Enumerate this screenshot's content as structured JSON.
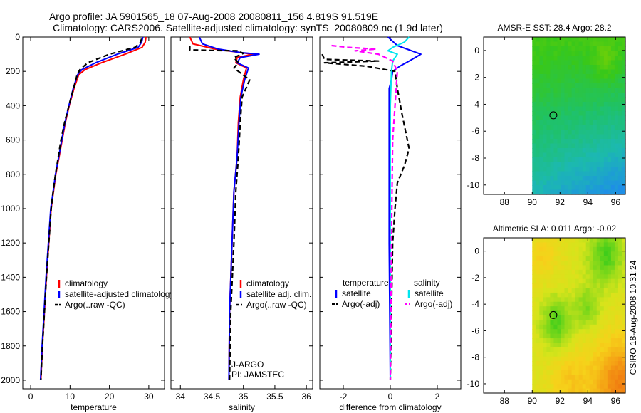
{
  "header": {
    "line1": "Argo profile: JA 5901565_18 07-Aug-2008 20080811_156 4.819S 91.519E",
    "line2": "Climatology: CARS2006. Satellite-adjusted climatology: synTS_20080809.nc (1.9d later)"
  },
  "side_stamp": "CSIRO 18-Aug-2008 10:31:24",
  "colors": {
    "climatology": "#ff0000",
    "satellite": "#0000ff",
    "argo": "#000000",
    "salinity_satellite": "#00e5ee",
    "salinity_argo": "#ff00ff",
    "float_marker": "#000000"
  },
  "chart_data": [
    {
      "type": "line",
      "name": "temperature-profile",
      "xlabel": "temperature",
      "ylabel": "",
      "xlim": [
        -2,
        34
      ],
      "ylim": [
        0,
        2050
      ],
      "y_reversed": true,
      "xticks": [
        0,
        10,
        20,
        30
      ],
      "xtick_labels": [
        "0",
        "10",
        "20",
        "30"
      ],
      "yticks": [
        0,
        200,
        400,
        600,
        800,
        1000,
        1200,
        1400,
        1600,
        1800,
        2000
      ],
      "ytick_labels": [
        "0",
        "200",
        "400",
        "600",
        "800",
        "1000",
        "1200",
        "1400",
        "1600",
        "1800",
        "2000"
      ],
      "legend": [
        "climatology",
        "satellite-adjusted climatology",
        "Argo(..raw -QC)"
      ],
      "legend_position": "lower-center",
      "series": [
        {
          "name": "climatology",
          "style": "solid",
          "color": "#ff0000",
          "x": [
            29.3,
            29.1,
            28.3,
            24.0,
            18.0,
            13.8,
            12.2,
            11.0,
            9.8,
            8.8,
            8.0,
            7.2,
            6.4,
            5.8,
            5.2,
            4.6,
            4.0,
            3.5,
            3.0,
            2.6
          ],
          "y": [
            0,
            30,
            60,
            100,
            150,
            190,
            220,
            300,
            400,
            500,
            600,
            700,
            800,
            900,
            1000,
            1200,
            1400,
            1600,
            1800,
            2000
          ]
        },
        {
          "name": "satellite-adjusted climatology",
          "style": "solid",
          "color": "#0000ff",
          "x": [
            28.5,
            28.2,
            27.3,
            22.0,
            16.5,
            13.0,
            11.9,
            10.8,
            9.7,
            8.7,
            7.9,
            7.1,
            6.3,
            5.7,
            5.1,
            4.5,
            3.9,
            3.4,
            2.9,
            2.5
          ],
          "y": [
            0,
            30,
            60,
            100,
            150,
            190,
            220,
            300,
            400,
            500,
            600,
            700,
            800,
            900,
            1000,
            1200,
            1400,
            1600,
            1800,
            2000
          ]
        },
        {
          "name": "Argo(..raw -QC)",
          "style": "dashed",
          "color": "#000000",
          "x": [
            28.2,
            27.8,
            26.5,
            20.0,
            14.5,
            12.5,
            11.8,
            10.9,
            9.7,
            8.6,
            7.7,
            7.0,
            6.3,
            5.7,
            5.2,
            4.6,
            4.0,
            3.5,
            3.0,
            2.6
          ],
          "y": [
            10,
            35,
            60,
            100,
            150,
            190,
            220,
            300,
            400,
            500,
            600,
            700,
            800,
            900,
            1000,
            1200,
            1400,
            1600,
            1800,
            2000
          ]
        }
      ]
    },
    {
      "type": "line",
      "name": "salinity-profile",
      "xlabel": "salinity",
      "xlim": [
        33.85,
        36.1
      ],
      "ylim": [
        0,
        2050
      ],
      "y_reversed": true,
      "xticks": [
        34,
        34.5,
        35,
        35.5,
        36
      ],
      "xtick_labels": [
        "34",
        "34.5",
        "35",
        "35.5",
        "36"
      ],
      "legend": [
        "climatology",
        "satellite adj. clim.",
        "Argo(..raw -QC)"
      ],
      "legend_position": "lower-center",
      "annotations": [
        "J-ARGO",
        "PI: JAMSTEC"
      ],
      "series": [
        {
          "name": "climatology",
          "style": "solid",
          "color": "#ff0000",
          "x": [
            34.15,
            34.2,
            34.55,
            34.95,
            35.15,
            34.9,
            34.88,
            35.05,
            35.0,
            34.95,
            34.92,
            34.9,
            34.85,
            34.82,
            34.78,
            34.77
          ],
          "y": [
            0,
            40,
            70,
            90,
            100,
            120,
            150,
            180,
            250,
            350,
            500,
            700,
            900,
            1200,
            1600,
            2000
          ]
        },
        {
          "name": "satellite adj. clim.",
          "style": "solid",
          "color": "#0000ff",
          "x": [
            34.3,
            34.35,
            34.6,
            34.95,
            35.25,
            34.95,
            34.9,
            35.08,
            35.02,
            34.96,
            34.93,
            34.9,
            34.85,
            34.82,
            34.78,
            34.77
          ],
          "y": [
            0,
            40,
            70,
            90,
            100,
            120,
            150,
            180,
            250,
            350,
            500,
            700,
            900,
            1200,
            1600,
            2000
          ]
        },
        {
          "name": "Argo(..raw -QC)",
          "style": "dashed",
          "color": "#000000",
          "x": [
            34.15,
            34.15,
            34.5,
            34.9,
            35.0,
            34.85,
            34.92,
            34.85,
            35.1,
            34.98,
            34.95,
            34.92,
            34.88,
            34.85,
            34.8,
            34.78
          ],
          "y": [
            50,
            75,
            78,
            80,
            95,
            120,
            150,
            180,
            250,
            350,
            500,
            700,
            900,
            1200,
            1600,
            2000
          ]
        }
      ]
    },
    {
      "type": "line",
      "name": "difference-profile",
      "xlabel": "difference from climatology",
      "xlim": [
        -3,
        3
      ],
      "ylim": [
        0,
        2050
      ],
      "y_reversed": true,
      "xticks": [
        -2,
        0,
        2
      ],
      "xtick_labels": [
        "-2",
        "0",
        "2"
      ],
      "legend_groups": [
        {
          "title": "temperature",
          "entries": [
            "satellite",
            "Argo(-adj)"
          ]
        },
        {
          "title": "salinity",
          "entries": [
            "satellite",
            "Argo(-adj)"
          ]
        }
      ],
      "legend_position": "lower-center",
      "series": [
        {
          "name": "temperature satellite",
          "style": "solid",
          "color": "#0000ff",
          "x": [
            -0.1,
            0.3,
            1.3,
            0.8,
            0.4,
            0.1,
            0.05,
            -0.05,
            -0.05,
            -0.05,
            -0.05,
            0
          ],
          "y": [
            0,
            50,
            100,
            140,
            170,
            200,
            250,
            300,
            500,
            800,
            1200,
            2000
          ]
        },
        {
          "name": "temperature Argo(-adj)",
          "style": "dashed",
          "color": "#000000",
          "x": [
            -2.9,
            -2.8,
            -0.5,
            -2.8,
            -1.0,
            0.2,
            0.3,
            0.5,
            0.8,
            0.6,
            0.3,
            0.2,
            0.1,
            0.05,
            0
          ],
          "y": [
            100,
            130,
            140,
            150,
            170,
            200,
            300,
            450,
            650,
            750,
            850,
            1000,
            1200,
            1600,
            2000
          ]
        },
        {
          "name": "salinity satellite",
          "style": "solid",
          "color": "#00e5ee",
          "x": [
            0.8,
            0.6,
            0.1,
            -0.1,
            0.3,
            0.1,
            0.05,
            0,
            0,
            0
          ],
          "y": [
            0,
            30,
            60,
            80,
            100,
            140,
            200,
            400,
            1000,
            2000
          ]
        },
        {
          "name": "salinity Argo(-adj)",
          "style": "dashed",
          "color": "#ff00ff",
          "x": [
            -2.5,
            -1.8,
            -0.6,
            -1.5,
            -0.5,
            0.1,
            0.3,
            0.1,
            0.05,
            0
          ],
          "y": [
            50,
            60,
            70,
            80,
            100,
            140,
            200,
            600,
            1200,
            2000
          ]
        }
      ]
    },
    {
      "type": "heatmap",
      "name": "sst-map",
      "title": "AMSR-E SST: 28.4  Argo: 28.2",
      "xlim": [
        86.5,
        96.7
      ],
      "ylim": [
        -10.7,
        1.0
      ],
      "data_x_start": 90,
      "xticks": [
        88,
        90,
        92,
        94,
        96
      ],
      "xtick_labels": [
        "88",
        "90",
        "92",
        "94",
        "96"
      ],
      "yticks": [
        0,
        -2,
        -4,
        -6,
        -8,
        -10
      ],
      "ytick_labels": [
        "0",
        "-2",
        "-4",
        "-6",
        "-8",
        "-10"
      ],
      "float_position": {
        "lon": 91.519,
        "lat": -4.819
      },
      "stops": [
        "#8ad400",
        "#38c81a",
        "#1fc267",
        "#1cb9b0",
        "#1e8fe6"
      ]
    },
    {
      "type": "heatmap",
      "name": "sla-map",
      "title": "Altimetric SLA: 0.011  Argo: -0.02",
      "xlim": [
        86.5,
        96.7
      ],
      "ylim": [
        -10.7,
        1.0
      ],
      "data_x_start": 90,
      "xticks": [
        88,
        90,
        92,
        94,
        96
      ],
      "xtick_labels": [
        "88",
        "90",
        "92",
        "94",
        "96"
      ],
      "yticks": [
        0,
        -2,
        -4,
        -6,
        -8,
        -10
      ],
      "ytick_labels": [
        "0",
        "-2",
        "-4",
        "-6",
        "-8",
        "-10"
      ],
      "float_position": {
        "lon": 91.519,
        "lat": -4.819
      },
      "stops": [
        "#20c81c",
        "#7fd81a",
        "#d6e41b",
        "#f6d21a",
        "#f5a615",
        "#f07a10"
      ]
    }
  ]
}
